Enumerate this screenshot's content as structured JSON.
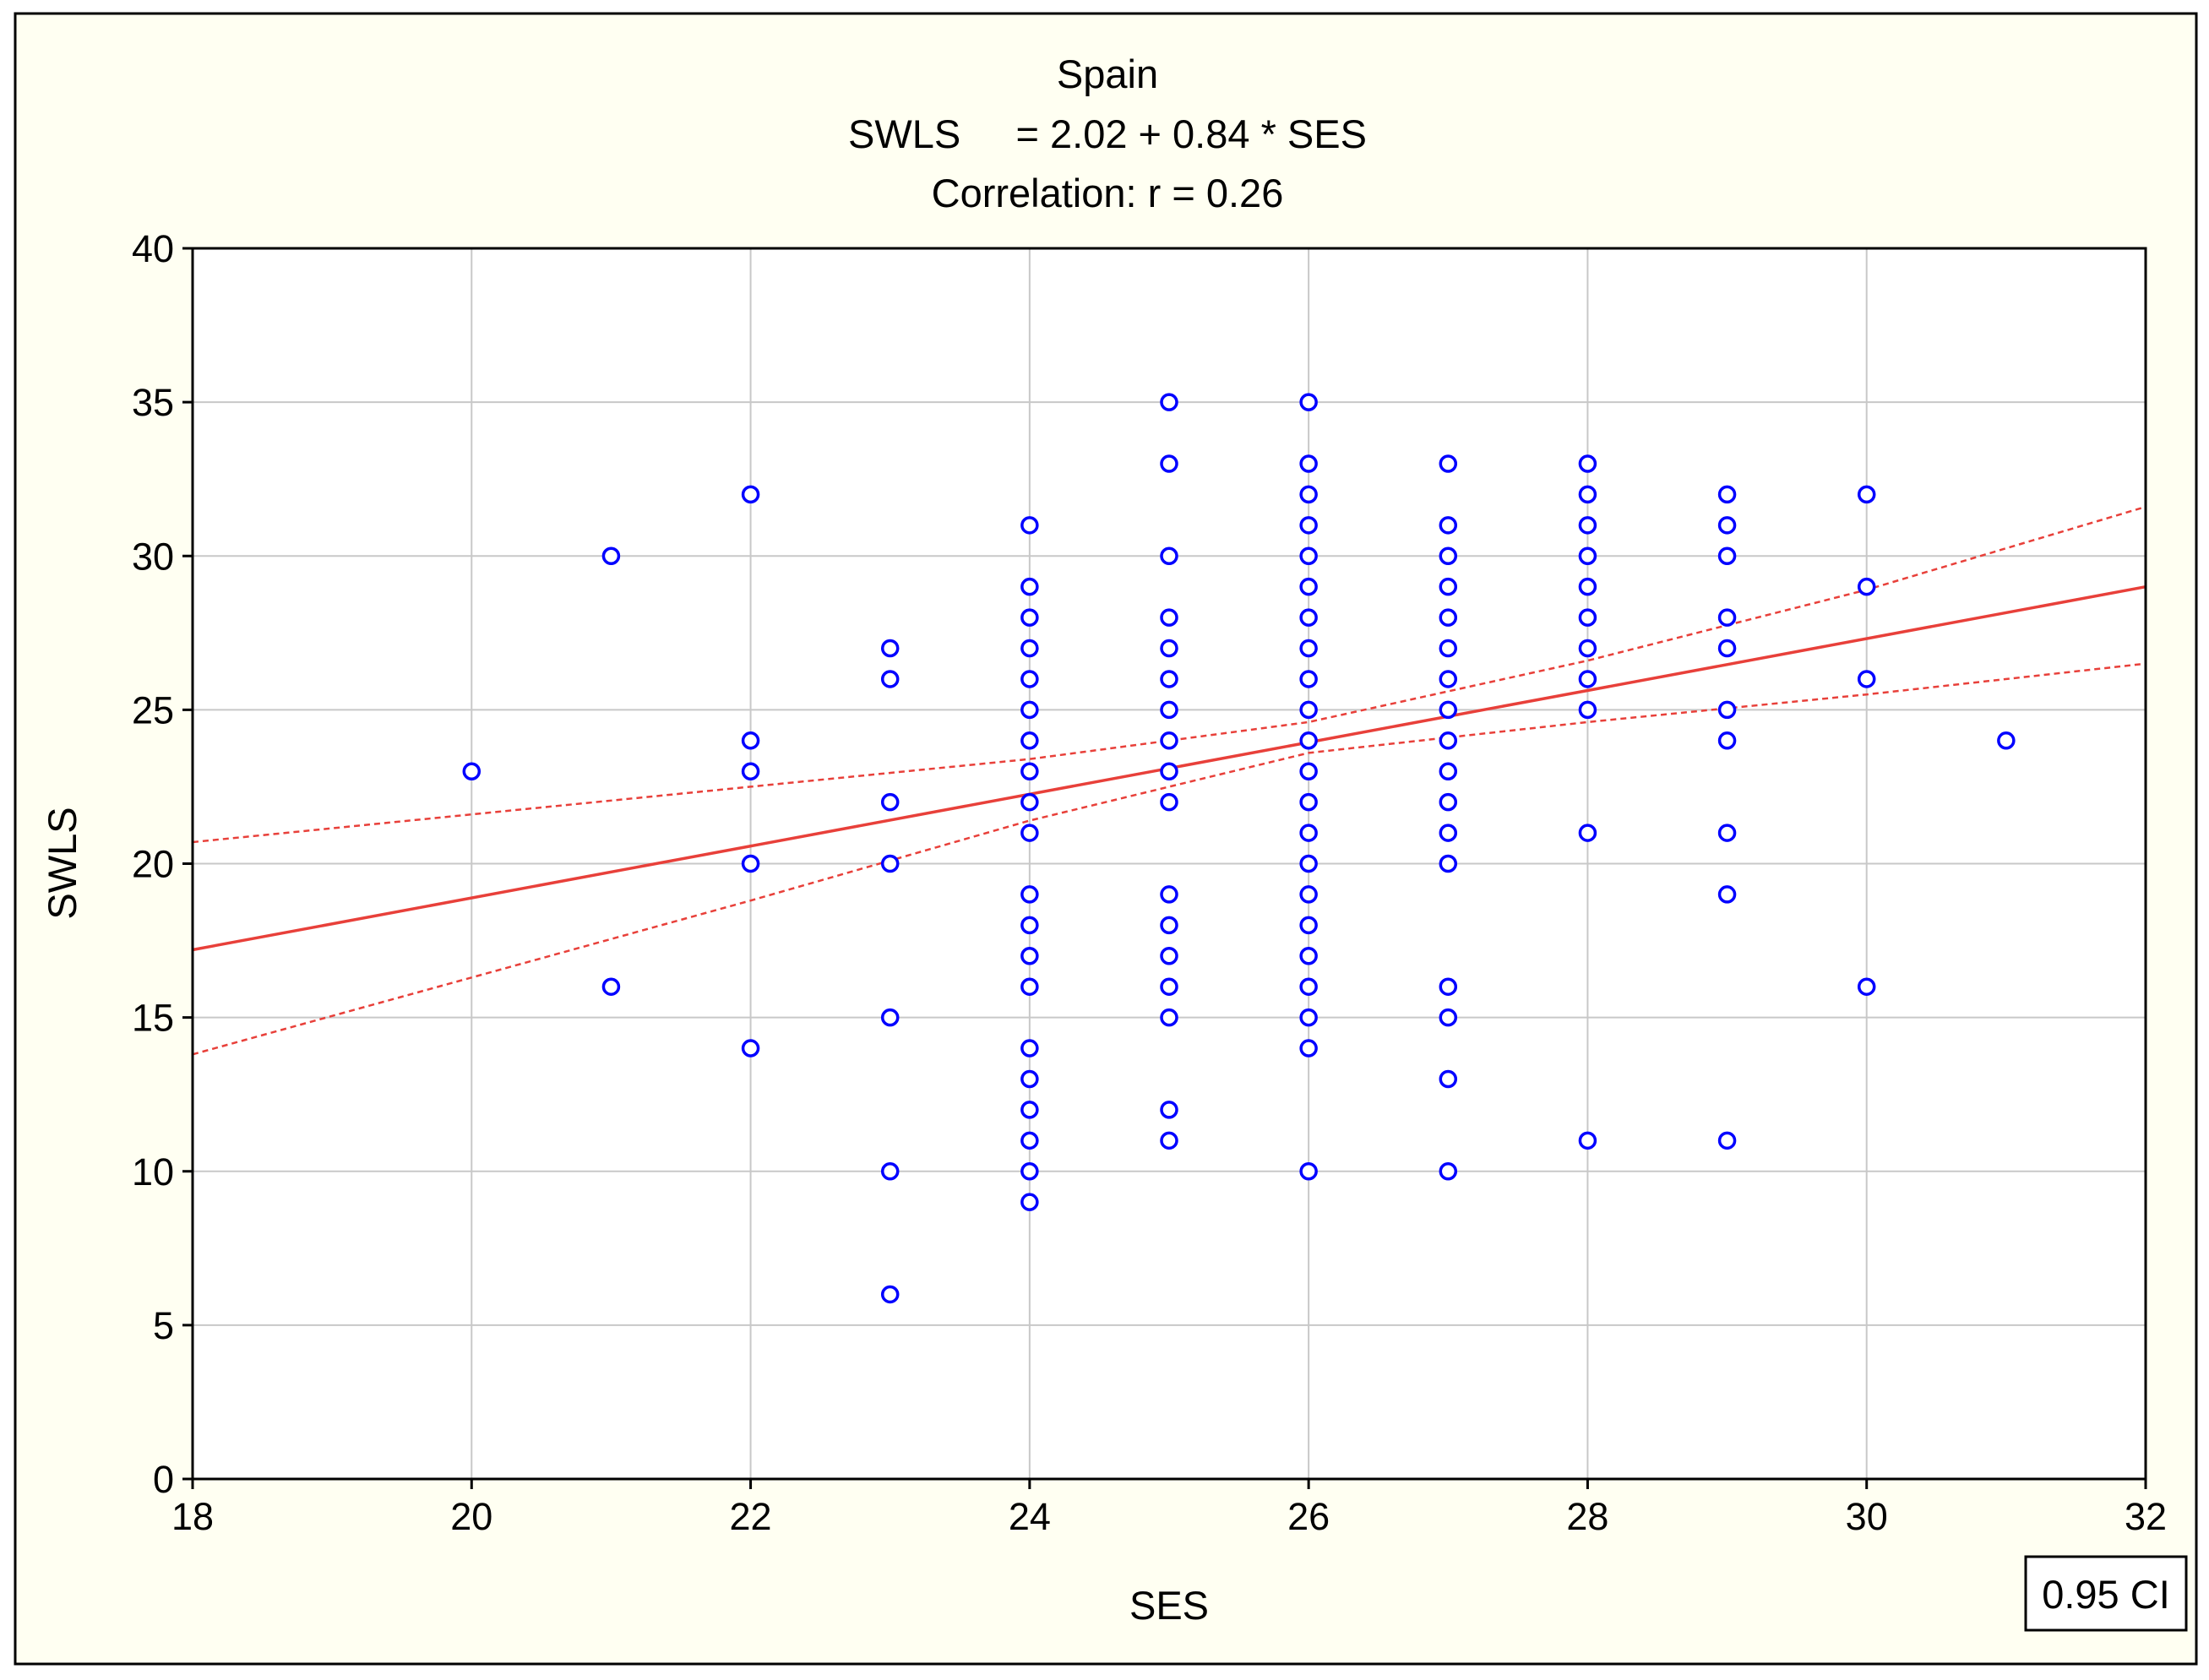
{
  "chart_data": {
    "type": "scatter",
    "title": "Spain",
    "subtitle_lines": [
      "SWLS     = 2.02 + 0.84 * SES",
      "Correlation: r = 0.26"
    ],
    "xlabel": "SES",
    "ylabel": "SWLS",
    "xlim": [
      18,
      32
    ],
    "ylim": [
      0,
      40
    ],
    "xticks": [
      18,
      20,
      22,
      24,
      26,
      28,
      30,
      32
    ],
    "yticks": [
      0,
      5,
      10,
      15,
      20,
      25,
      30,
      35,
      40
    ],
    "grid": true,
    "legend": {
      "placement": "bottom-right",
      "text": "0.95 CI"
    },
    "colors": {
      "points": "#0000ff",
      "fit": "#e8403a",
      "grid": "#c8c8c8",
      "frame_bg": "#fffff2"
    },
    "points": [
      [
        20,
        23
      ],
      [
        21,
        30
      ],
      [
        21,
        16
      ],
      [
        22,
        32
      ],
      [
        22,
        24
      ],
      [
        22,
        23
      ],
      [
        22,
        20
      ],
      [
        22,
        14
      ],
      [
        23,
        27
      ],
      [
        23,
        26
      ],
      [
        23,
        22
      ],
      [
        23,
        20
      ],
      [
        23,
        15
      ],
      [
        23,
        10
      ],
      [
        23,
        6
      ],
      [
        24,
        31
      ],
      [
        24,
        29
      ],
      [
        24,
        28
      ],
      [
        24,
        27
      ],
      [
        24,
        26
      ],
      [
        24,
        25
      ],
      [
        24,
        24
      ],
      [
        24,
        23
      ],
      [
        24,
        22
      ],
      [
        24,
        21
      ],
      [
        24,
        19
      ],
      [
        24,
        18
      ],
      [
        24,
        17
      ],
      [
        24,
        16
      ],
      [
        24,
        14
      ],
      [
        24,
        13
      ],
      [
        24,
        12
      ],
      [
        24,
        11
      ],
      [
        24,
        10
      ],
      [
        24,
        9
      ],
      [
        25,
        35
      ],
      [
        25,
        33
      ],
      [
        25,
        30
      ],
      [
        25,
        28
      ],
      [
        25,
        27
      ],
      [
        25,
        26
      ],
      [
        25,
        25
      ],
      [
        25,
        24
      ],
      [
        25,
        23
      ],
      [
        25,
        22
      ],
      [
        25,
        19
      ],
      [
        25,
        18
      ],
      [
        25,
        17
      ],
      [
        25,
        16
      ],
      [
        25,
        15
      ],
      [
        25,
        12
      ],
      [
        25,
        11
      ],
      [
        26,
        35
      ],
      [
        26,
        33
      ],
      [
        26,
        32
      ],
      [
        26,
        31
      ],
      [
        26,
        30
      ],
      [
        26,
        29
      ],
      [
        26,
        28
      ],
      [
        26,
        27
      ],
      [
        26,
        26
      ],
      [
        26,
        25
      ],
      [
        26,
        24
      ],
      [
        26,
        23
      ],
      [
        26,
        22
      ],
      [
        26,
        21
      ],
      [
        26,
        20
      ],
      [
        26,
        19
      ],
      [
        26,
        18
      ],
      [
        26,
        17
      ],
      [
        26,
        16
      ],
      [
        26,
        15
      ],
      [
        26,
        14
      ],
      [
        26,
        10
      ],
      [
        27,
        33
      ],
      [
        27,
        31
      ],
      [
        27,
        30
      ],
      [
        27,
        29
      ],
      [
        27,
        28
      ],
      [
        27,
        27
      ],
      [
        27,
        26
      ],
      [
        27,
        25
      ],
      [
        27,
        24
      ],
      [
        27,
        23
      ],
      [
        27,
        22
      ],
      [
        27,
        21
      ],
      [
        27,
        20
      ],
      [
        27,
        16
      ],
      [
        27,
        15
      ],
      [
        27,
        13
      ],
      [
        27,
        10
      ],
      [
        28,
        33
      ],
      [
        28,
        32
      ],
      [
        28,
        31
      ],
      [
        28,
        30
      ],
      [
        28,
        29
      ],
      [
        28,
        28
      ],
      [
        28,
        27
      ],
      [
        28,
        26
      ],
      [
        28,
        25
      ],
      [
        28,
        21
      ],
      [
        28,
        11
      ],
      [
        29,
        32
      ],
      [
        29,
        31
      ],
      [
        29,
        30
      ],
      [
        29,
        28
      ],
      [
        29,
        27
      ],
      [
        29,
        25
      ],
      [
        29,
        24
      ],
      [
        29,
        21
      ],
      [
        29,
        19
      ],
      [
        29,
        11
      ],
      [
        30,
        32
      ],
      [
        30,
        29
      ],
      [
        30,
        26
      ],
      [
        30,
        16
      ],
      [
        31,
        24
      ]
    ],
    "fit": {
      "intercept": 2.02,
      "slope": 0.84,
      "x": [
        18,
        32
      ],
      "y": [
        17.2,
        29.0
      ]
    },
    "ci_upper": {
      "x": [
        18,
        20,
        22,
        24,
        26,
        28,
        30,
        32
      ],
      "y": [
        20.7,
        21.6,
        22.5,
        23.4,
        24.6,
        26.6,
        28.9,
        31.6
      ]
    },
    "ci_lower": {
      "x": [
        18,
        20,
        22,
        24,
        26,
        28,
        30,
        32
      ],
      "y": [
        13.8,
        16.3,
        18.8,
        21.4,
        23.6,
        24.6,
        25.5,
        26.5
      ]
    }
  }
}
